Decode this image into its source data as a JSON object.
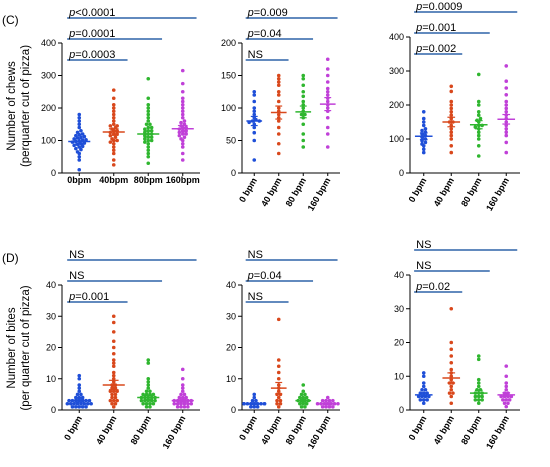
{
  "panels": [
    {
      "label": "(C)",
      "ylabel_lines": [
        "Number of chews",
        "(perquarter cut of pizza)"
      ]
    },
    {
      "label": "(D)",
      "ylabel_lines": [
        "Number of bites",
        "(per quarter cut of pizza)"
      ]
    }
  ],
  "colors": {
    "c0": "#1f4fd8",
    "c1": "#d9481c",
    "c2": "#2fb62f",
    "c3": "#c040d8",
    "bracket": "#2f63a8"
  },
  "chart_data": [
    {
      "type": "scatter",
      "categories": [
        "0bpm",
        "40bpm",
        "80bpm",
        "160bpm"
      ],
      "ylim": [
        0,
        400
      ],
      "yticks": [
        0,
        100,
        200,
        300,
        400
      ],
      "means": [
        97,
        126,
        120,
        136
      ],
      "sems": [
        8,
        10,
        9,
        10
      ],
      "series": [
        {
          "values": [
            40,
            60,
            65,
            72,
            75,
            80,
            82,
            85,
            88,
            90,
            92,
            95,
            97,
            98,
            100,
            102,
            105,
            108,
            110,
            112,
            115,
            118,
            120,
            125,
            130,
            140,
            150,
            160,
            170,
            180,
            10,
            50
          ]
        },
        {
          "values": [
            25,
            40,
            60,
            70,
            80,
            90,
            95,
            100,
            105,
            110,
            115,
            120,
            125,
            130,
            135,
            140,
            145,
            150,
            160,
            170,
            180,
            190,
            200,
            210,
            230,
            255,
            120,
            130,
            145,
            100
          ]
        },
        {
          "values": [
            30,
            50,
            60,
            70,
            80,
            90,
            95,
            100,
            105,
            110,
            115,
            120,
            125,
            130,
            135,
            140,
            150,
            160,
            170,
            180,
            190,
            200,
            210,
            230,
            290,
            120,
            110,
            100,
            130,
            140,
            150
          ]
        },
        {
          "values": [
            40,
            60,
            80,
            90,
            100,
            105,
            110,
            115,
            120,
            125,
            130,
            135,
            140,
            145,
            150,
            155,
            160,
            170,
            180,
            190,
            200,
            210,
            220,
            230,
            250,
            275,
            315,
            130,
            140,
            120
          ]
        }
      ],
      "comparisons": [
        {
          "to": 3,
          "label": "p<0.0001"
        },
        {
          "to": 2,
          "label": "p=0.0001"
        },
        {
          "to": 1,
          "label": "p=0.0003"
        }
      ]
    },
    {
      "type": "scatter",
      "categories": [
        "0 bpm",
        "40 bpm",
        "80 bpm",
        "160 bpm"
      ],
      "ylim": [
        0,
        200
      ],
      "yticks": [
        0,
        50,
        100,
        150,
        200
      ],
      "means": [
        80,
        93,
        94,
        106
      ],
      "sems": [
        7,
        10,
        9,
        10
      ],
      "series": [
        {
          "values": [
            20,
            50,
            62,
            70,
            75,
            78,
            80,
            82,
            85,
            90,
            95,
            100,
            110,
            120,
            125,
            80
          ]
        },
        {
          "values": [
            30,
            45,
            60,
            70,
            80,
            85,
            90,
            95,
            100,
            110,
            120,
            125,
            135,
            140,
            145,
            150
          ]
        },
        {
          "values": [
            40,
            50,
            60,
            75,
            85,
            90,
            95,
            100,
            105,
            110,
            118,
            125,
            135,
            145,
            150,
            90
          ]
        },
        {
          "values": [
            40,
            60,
            70,
            85,
            95,
            100,
            105,
            110,
            115,
            120,
            125,
            130,
            140,
            150,
            160,
            175
          ]
        }
      ],
      "comparisons": [
        {
          "to": 3,
          "label": "p=0.009"
        },
        {
          "to": 2,
          "label": "p=0.04"
        },
        {
          "to": 1,
          "label": "NS"
        }
      ]
    },
    {
      "type": "scatter",
      "categories": [
        "0 bpm",
        "40 bpm",
        "80 bpm",
        "160 bpm"
      ],
      "ylim": [
        0,
        400
      ],
      "yticks": [
        0,
        100,
        200,
        300,
        400
      ],
      "means": [
        108,
        150,
        142,
        158
      ],
      "sems": [
        10,
        14,
        12,
        14
      ],
      "series": [
        {
          "values": [
            60,
            70,
            80,
            85,
            90,
            95,
            100,
            105,
            110,
            115,
            120,
            125,
            130,
            140,
            150,
            160,
            180
          ]
        },
        {
          "values": [
            60,
            80,
            100,
            110,
            120,
            130,
            140,
            150,
            160,
            170,
            180,
            190,
            200,
            210,
            240,
            255,
            150
          ]
        },
        {
          "values": [
            50,
            80,
            100,
            110,
            120,
            130,
            135,
            140,
            150,
            155,
            160,
            170,
            180,
            200,
            210,
            290,
            140
          ]
        },
        {
          "values": [
            60,
            90,
            110,
            120,
            130,
            140,
            150,
            160,
            170,
            180,
            190,
            200,
            210,
            230,
            250,
            270,
            315
          ]
        }
      ],
      "comparisons": [
        {
          "to": 3,
          "label": "p=0.0009"
        },
        {
          "to": 2,
          "label": "p=0.001"
        },
        {
          "to": 1,
          "label": "p=0.002"
        }
      ]
    },
    {
      "type": "scatter",
      "categories": [
        "0 bpm",
        "40 bpm",
        "80 bpm",
        "160 bpm"
      ],
      "ylim": [
        0,
        40
      ],
      "yticks": [
        0,
        10,
        20,
        30,
        40
      ],
      "means": [
        3,
        8,
        4,
        3
      ],
      "sems": [
        0.5,
        1.5,
        0.6,
        0.5
      ],
      "series": [
        {
          "values": [
            1,
            1,
            1,
            1,
            2,
            2,
            2,
            2,
            2,
            2,
            2,
            3,
            3,
            3,
            3,
            3,
            3,
            4,
            4,
            4,
            5,
            5,
            6,
            7,
            8,
            10,
            11,
            2,
            3,
            1
          ]
        },
        {
          "values": [
            1,
            2,
            2,
            3,
            3,
            4,
            5,
            5,
            6,
            6,
            7,
            8,
            8,
            9,
            10,
            11,
            12,
            14,
            15,
            16,
            18,
            20,
            22,
            25,
            28,
            30,
            4,
            3,
            6,
            7
          ]
        },
        {
          "values": [
            1,
            1,
            2,
            2,
            2,
            3,
            3,
            3,
            3,
            4,
            4,
            4,
            4,
            5,
            5,
            5,
            6,
            6,
            7,
            8,
            9,
            10,
            15,
            16,
            3,
            2,
            4,
            5
          ]
        },
        {
          "values": [
            1,
            1,
            1,
            2,
            2,
            2,
            2,
            3,
            3,
            3,
            3,
            3,
            4,
            4,
            4,
            5,
            5,
            6,
            7,
            8,
            10,
            13,
            2,
            3,
            1,
            2
          ]
        }
      ],
      "comparisons": [
        {
          "to": 3,
          "label": "NS"
        },
        {
          "to": 2,
          "label": "NS"
        },
        {
          "to": 1,
          "label": "p=0.001"
        }
      ]
    },
    {
      "type": "scatter",
      "categories": [
        "0 bpm",
        "40 bpm",
        "80 bpm",
        "160 bpm"
      ],
      "ylim": [
        0,
        40
      ],
      "yticks": [
        0,
        10,
        20,
        30,
        40
      ],
      "means": [
        2,
        7,
        3,
        2
      ],
      "sems": [
        0.3,
        1.8,
        0.5,
        0.3
      ],
      "series": [
        {
          "values": [
            1,
            1,
            2,
            2,
            2,
            2,
            2,
            2,
            2,
            3,
            3,
            1,
            2,
            2,
            4,
            5
          ]
        },
        {
          "values": [
            1,
            2,
            2,
            3,
            3,
            4,
            5,
            5,
            6,
            7,
            8,
            10,
            12,
            14,
            16,
            29
          ]
        },
        {
          "values": [
            1,
            1,
            2,
            2,
            2,
            3,
            3,
            3,
            3,
            4,
            4,
            4,
            5,
            5,
            6,
            8
          ]
        },
        {
          "values": [
            1,
            1,
            1,
            2,
            2,
            2,
            2,
            2,
            2,
            3,
            3,
            3,
            3,
            2,
            1,
            4
          ]
        }
      ],
      "comparisons": [
        {
          "to": 3,
          "label": "NS"
        },
        {
          "to": 2,
          "label": "p=0.04"
        },
        {
          "to": 1,
          "label": "NS"
        }
      ]
    },
    {
      "type": "scatter",
      "categories": [
        "0 bpm",
        "40 bpm",
        "80 bpm",
        "160 bpm"
      ],
      "ylim": [
        0,
        40
      ],
      "yticks": [
        0,
        10,
        20,
        30,
        40
      ],
      "means": [
        4.5,
        9.5,
        5,
        4.5
      ],
      "sems": [
        0.6,
        1.5,
        0.8,
        0.6
      ],
      "series": [
        {
          "values": [
            2,
            3,
            3,
            3,
            4,
            4,
            4,
            5,
            5,
            5,
            6,
            6,
            7,
            8,
            10,
            11,
            4
          ]
        },
        {
          "values": [
            2,
            4,
            5,
            5,
            6,
            7,
            8,
            8,
            9,
            10,
            11,
            12,
            14,
            16,
            18,
            20,
            30
          ]
        },
        {
          "values": [
            2,
            3,
            3,
            4,
            4,
            4,
            5,
            5,
            5,
            6,
            6,
            7,
            8,
            9,
            15,
            16,
            3
          ]
        },
        {
          "values": [
            1,
            2,
            2,
            3,
            3,
            3,
            4,
            4,
            4,
            5,
            5,
            6,
            7,
            8,
            10,
            13,
            4
          ]
        }
      ],
      "comparisons": [
        {
          "to": 3,
          "label": "NS"
        },
        {
          "to": 2,
          "label": "NS"
        },
        {
          "to": 1,
          "label": "p=0.02"
        }
      ]
    }
  ]
}
